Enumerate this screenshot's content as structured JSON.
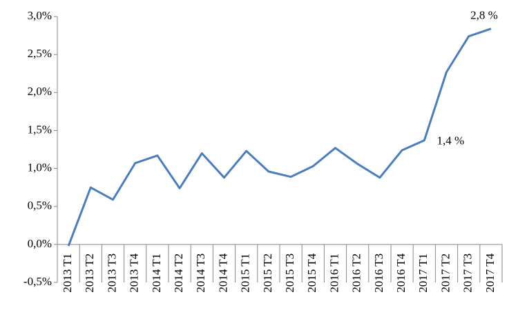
{
  "chart_data": {
    "type": "line",
    "categories": [
      "2013 T1",
      "2013 T2",
      "2013 T3",
      "2013 T4",
      "2014 T1",
      "2014 T2",
      "2014 T3",
      "2014 T4",
      "2015 T1",
      "2015 T2",
      "2015 T3",
      "2015 T4",
      "2016 T1",
      "2016 T2",
      "2016 T3",
      "2016 T4",
      "2017 T1",
      "2017 T2",
      "2017 T3",
      "2017 T4"
    ],
    "values": [
      -0.02,
      0.75,
      0.59,
      1.07,
      1.17,
      0.74,
      1.2,
      0.88,
      1.23,
      0.96,
      0.89,
      1.03,
      1.27,
      1.06,
      0.88,
      1.24,
      1.37,
      2.27,
      2.74,
      2.84
    ],
    "value_labels": [
      null,
      null,
      null,
      null,
      null,
      null,
      null,
      null,
      null,
      null,
      null,
      null,
      null,
      null,
      null,
      null,
      "1,4 %",
      null,
      null,
      "2,8 %"
    ],
    "color": "#4a7ebb",
    "ylim": [
      -0.5,
      3.0
    ],
    "yticks": [
      {
        "value": -0.5,
        "label": "-0,5%"
      },
      {
        "value": 0,
        "label": "0,0%"
      },
      {
        "value": 0.5,
        "label": "0,5%"
      },
      {
        "value": 1.0,
        "label": "1,0%"
      },
      {
        "value": 1.5,
        "label": "1,5%"
      },
      {
        "value": 2.0,
        "label": "2,0%"
      },
      {
        "value": 2.5,
        "label": "2,5%"
      },
      {
        "value": 3.0,
        "label": "3,0%"
      }
    ],
    "grid": false
  }
}
